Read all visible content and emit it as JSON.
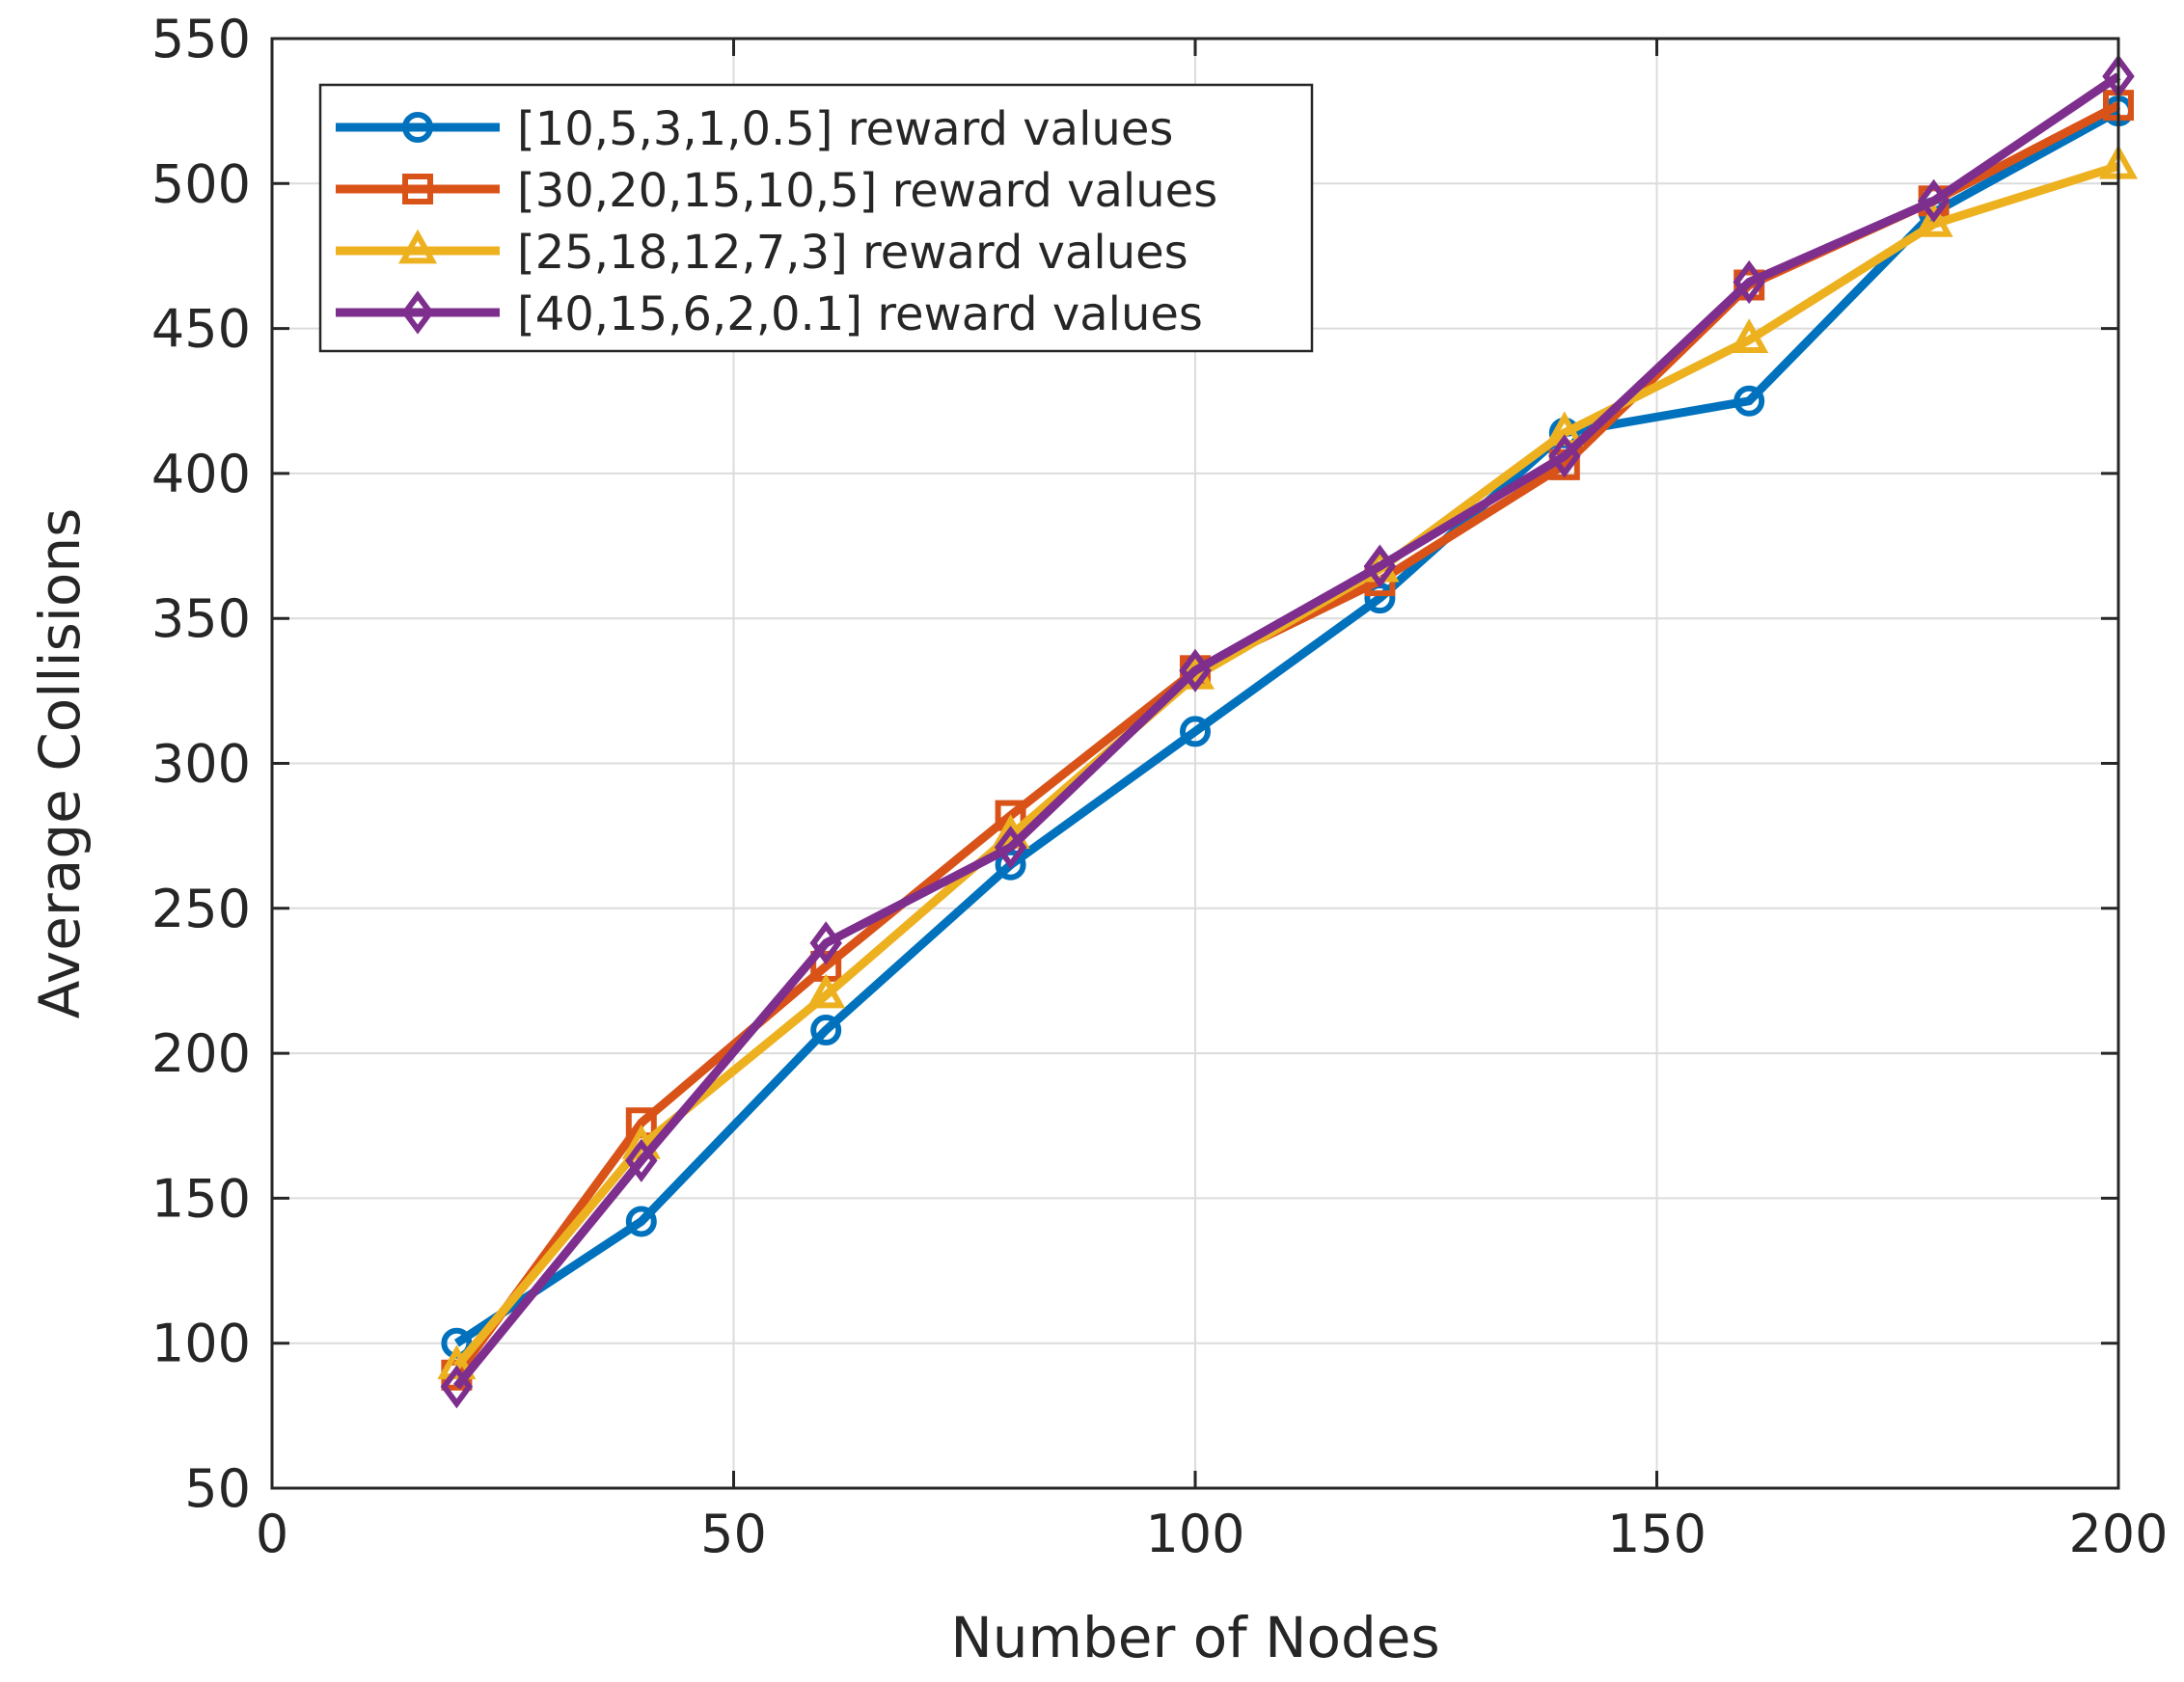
{
  "chart_data": {
    "type": "line",
    "title": "",
    "xlabel": "Number of Nodes",
    "ylabel": "Average Collisions",
    "xlim": [
      0,
      200
    ],
    "ylim": [
      50,
      550
    ],
    "xticks": [
      0,
      50,
      100,
      150,
      200
    ],
    "yticks": [
      50,
      100,
      150,
      200,
      250,
      300,
      350,
      400,
      450,
      500,
      550
    ],
    "grid": true,
    "legend_position": "top-left",
    "x": [
      20,
      40,
      60,
      80,
      100,
      120,
      140,
      160,
      180,
      200
    ],
    "series": [
      {
        "name": "[10,5,3,1,0.5] reward values",
        "color": "#0072BD",
        "marker": "circle",
        "values": [
          100,
          142,
          208,
          265,
          311,
          357,
          414,
          425,
          490,
          525
        ]
      },
      {
        "name": "[30,20,15,10,5] reward values",
        "color": "#D95319",
        "marker": "square",
        "values": [
          89,
          176,
          230,
          282,
          332,
          363,
          403,
          465,
          494,
          527
        ]
      },
      {
        "name": "[25,18,12,7,3] reward values",
        "color": "#EDB120",
        "marker": "triangle",
        "values": [
          92,
          168,
          220,
          275,
          330,
          367,
          414,
          446,
          486,
          506
        ]
      },
      {
        "name": "[40,15,6,2,0.1] reward values",
        "color": "#7E2F8E",
        "marker": "diamond",
        "values": [
          85,
          163,
          238,
          271,
          332,
          368,
          406,
          466,
          494,
          537
        ]
      }
    ]
  }
}
